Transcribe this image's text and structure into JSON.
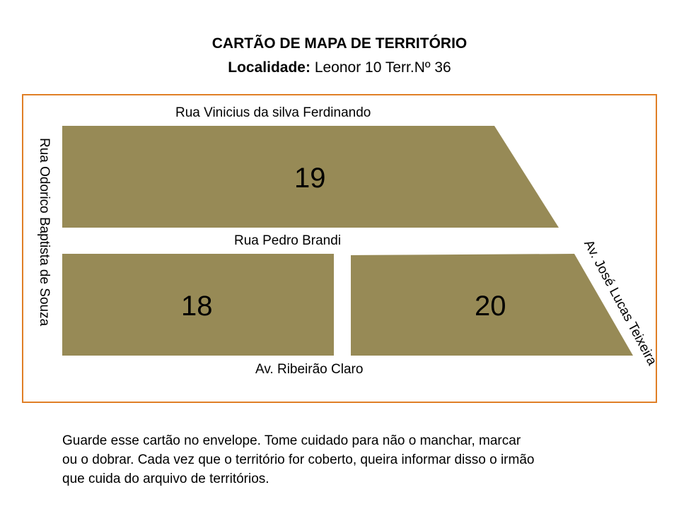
{
  "header": {
    "title": "CARTÃO DE MAPA DE TERRITÓRIO",
    "locality_label": "Localidade:",
    "locality_value": "Leonor 10 Terr.Nº 36"
  },
  "map": {
    "streets": {
      "top": "Rua Vinicius da silva Ferdinando",
      "middle": "Rua Pedro Brandi",
      "bottom": "Av. Ribeirão Claro",
      "left": "Rua Odorico Baptista de Souza",
      "right": "Av. José Lucas Teixeira"
    },
    "blocks": [
      {
        "id": "block-19",
        "number": "19"
      },
      {
        "id": "block-18",
        "number": "18"
      },
      {
        "id": "block-20",
        "number": "20"
      }
    ],
    "colors": {
      "block_fill": "#978a56",
      "frame_border": "#e07f26"
    }
  },
  "footer": {
    "note_line_1": "Guarde esse cartão no envelope. Tome cuidado para não o manchar, marcar",
    "note_line_2": "ou o dobrar. Cada vez que o território for coberto, queira informar disso o irmão",
    "note_line_3": "que cuida do arquivo de territórios."
  }
}
